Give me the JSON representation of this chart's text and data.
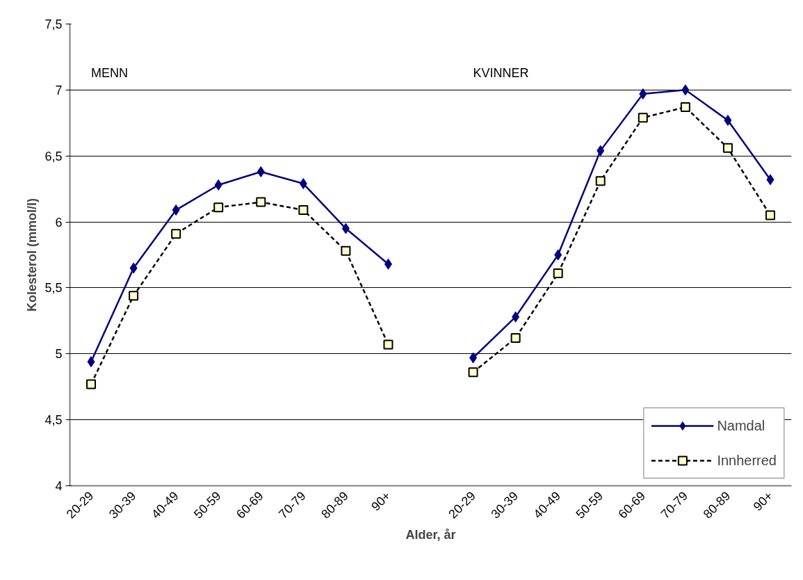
{
  "chart_data": {
    "type": "line",
    "xlabel": "Alder, år",
    "ylabel": "Kolesterol (mmol/l)",
    "annotations": [
      "MENN",
      "KVINNER"
    ],
    "categories": [
      "20-29",
      "30-39",
      "40-49",
      "50-59",
      "60-69",
      "70-79",
      "80-89",
      "90+",
      null,
      "20-29",
      "30-39",
      "40-49",
      "50-59",
      "60-69",
      "70-79",
      "80-89",
      "90+"
    ],
    "series": [
      {
        "name": "Namdal",
        "color": "#000080",
        "marker": "diamond",
        "line_style": "solid",
        "values": [
          4.94,
          5.65,
          6.09,
          6.28,
          6.38,
          6.29,
          5.95,
          5.68,
          null,
          4.97,
          5.28,
          5.75,
          6.54,
          6.97,
          7.0,
          6.77,
          6.32
        ]
      },
      {
        "name": "Innherred",
        "color": "#000000",
        "marker": "square",
        "line_style": "dashed",
        "values": [
          4.77,
          5.44,
          5.91,
          6.11,
          6.15,
          6.09,
          5.78,
          5.07,
          null,
          4.86,
          5.12,
          5.61,
          6.31,
          6.79,
          6.87,
          6.56,
          6.05
        ]
      }
    ],
    "ylim": [
      4,
      7.5
    ],
    "yticks": [
      {
        "value": 4,
        "label": "4"
      },
      {
        "value": 4.5,
        "label": "4,5"
      },
      {
        "value": 5,
        "label": "5"
      },
      {
        "value": 5.5,
        "label": "5,5"
      },
      {
        "value": 6,
        "label": "6"
      },
      {
        "value": 6.5,
        "label": "6,5"
      },
      {
        "value": 7,
        "label": "7"
      },
      {
        "value": 7.5,
        "label": "7,5"
      }
    ],
    "grid": "y",
    "legend": "bottom right"
  }
}
